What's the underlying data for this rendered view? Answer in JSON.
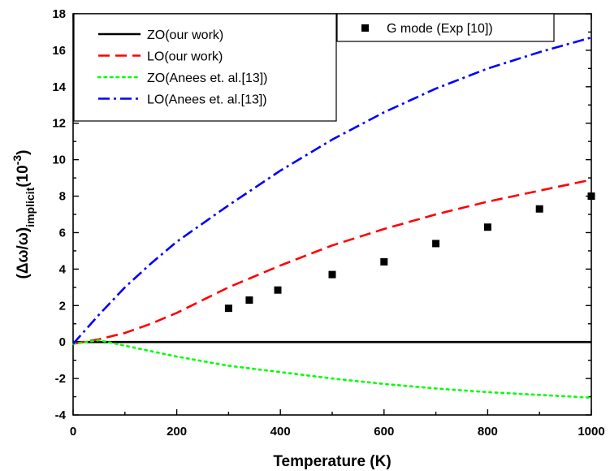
{
  "chart_data": {
    "type": "line",
    "title": "",
    "xlabel": "Temperature (K)",
    "ylabel": {
      "main": "(Δω/ω)",
      "subscript": "implicit",
      "unit_base": "(10",
      "unit_exp": "-3",
      "unit_close": ")"
    },
    "xlim": [
      0,
      1000
    ],
    "ylim": [
      -4,
      18
    ],
    "xticks": [
      0,
      200,
      400,
      600,
      800,
      1000
    ],
    "yticks": [
      -4,
      -2,
      0,
      2,
      4,
      6,
      8,
      10,
      12,
      14,
      16,
      18
    ],
    "grid": false,
    "series": [
      {
        "name": "ZO(our work)",
        "style": "solid",
        "color": "#000000",
        "x": [
          0,
          100,
          200,
          300,
          400,
          500,
          600,
          700,
          800,
          900,
          1000
        ],
        "y": [
          0,
          0,
          0,
          0,
          0,
          0,
          0,
          0,
          0,
          0,
          0
        ]
      },
      {
        "name": "LO(our work)",
        "style": "dashed",
        "color": "#ff0000",
        "x": [
          0,
          50,
          100,
          150,
          200,
          300,
          400,
          500,
          600,
          700,
          800,
          900,
          1000
        ],
        "y": [
          -0.1,
          0.15,
          0.5,
          1.0,
          1.6,
          3.0,
          4.2,
          5.3,
          6.2,
          7.0,
          7.7,
          8.3,
          8.9
        ]
      },
      {
        "name": "ZO(Anees et. al.[13])",
        "style": "dotted",
        "color": "#00ff00",
        "x": [
          0,
          50,
          100,
          200,
          300,
          400,
          500,
          600,
          700,
          800,
          900,
          1000
        ],
        "y": [
          -0.1,
          0.1,
          -0.2,
          -0.8,
          -1.3,
          -1.65,
          -2.0,
          -2.3,
          -2.55,
          -2.75,
          -2.9,
          -3.05
        ]
      },
      {
        "name": "LO(Anees et. al.[13])",
        "style": "dashdot",
        "color": "#0000ff",
        "x": [
          0,
          50,
          100,
          150,
          200,
          300,
          400,
          500,
          600,
          700,
          800,
          900,
          1000
        ],
        "y": [
          -0.1,
          1.5,
          3.0,
          4.3,
          5.5,
          7.5,
          9.4,
          11.1,
          12.6,
          13.9,
          15.0,
          15.9,
          16.7
        ]
      }
    ],
    "scatter": {
      "name": "G mode (Exp [10])",
      "color": "#000000",
      "marker": "square",
      "x": [
        300,
        340,
        395,
        500,
        600,
        700,
        800,
        900,
        1000
      ],
      "y": [
        1.85,
        2.3,
        2.85,
        3.7,
        4.4,
        5.4,
        6.3,
        7.3,
        8.0
      ]
    },
    "legends": [
      {
        "placement": "top-left",
        "entries": [
          "ZO(our work)",
          "LO(our work)",
          "ZO(Anees et. al.[13])",
          "LO(Anees et. al.[13])"
        ]
      },
      {
        "placement": "top-right",
        "entries": [
          "G mode (Exp [10])"
        ]
      }
    ]
  }
}
